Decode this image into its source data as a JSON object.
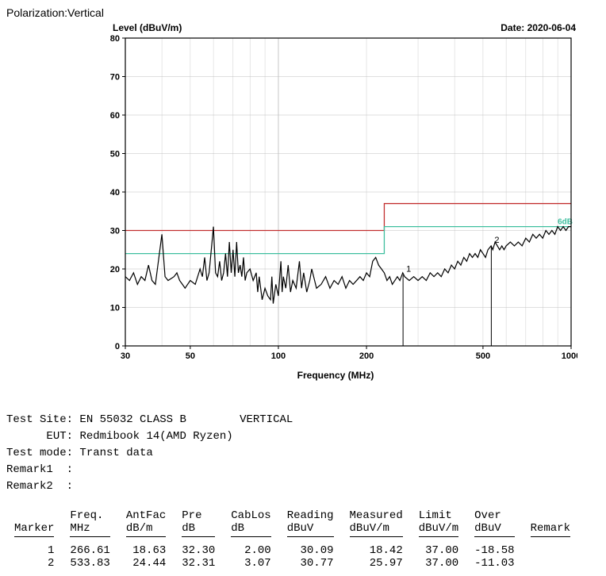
{
  "polarization_label": "Polarization:Vertical",
  "chart": {
    "type": "line",
    "y_axis_title": "Level (dBuV/m)",
    "date_label": "Date: 2020-06-04",
    "x_axis_title": "Frequency (MHz)",
    "x_scale": "log",
    "xlim": [
      30,
      1000
    ],
    "xticks": [
      30,
      50,
      100,
      200,
      500,
      1000
    ],
    "ylim": [
      0,
      80
    ],
    "yticks": [
      0,
      10,
      20,
      30,
      40,
      50,
      60,
      70,
      80
    ],
    "tick_fontsize": 11,
    "title_fontsize": 12,
    "background_color": "#ffffff",
    "grid_color": "#c0c0c0",
    "border_color": "#000000",
    "limit_red": {
      "color": "#c23030",
      "segments": [
        {
          "x1": 30,
          "x2": 230,
          "y": 30
        },
        {
          "x1": 230,
          "x2": 1000,
          "y": 37
        }
      ]
    },
    "limit_green": {
      "color": "#3fbf9f",
      "label": "6dB",
      "label_x": 900,
      "label_y": 31,
      "segments": [
        {
          "x1": 30,
          "x2": 230,
          "y": 24
        },
        {
          "x1": 230,
          "x2": 1000,
          "y": 31
        }
      ]
    },
    "markers": [
      {
        "n": 1,
        "x": 266.61,
        "y": 18.42,
        "line_to_zero": true
      },
      {
        "n": 2,
        "x": 533.83,
        "y": 25.97,
        "line_to_zero": true
      }
    ],
    "marker_color": "#000000",
    "trace_color": "#000000",
    "trace_width": 1.2,
    "trace": [
      [
        30,
        18
      ],
      [
        31,
        17
      ],
      [
        32,
        19
      ],
      [
        33,
        16
      ],
      [
        34,
        18
      ],
      [
        35,
        17
      ],
      [
        36,
        21
      ],
      [
        37,
        17
      ],
      [
        38,
        16
      ],
      [
        40,
        29
      ],
      [
        41,
        18
      ],
      [
        42,
        17
      ],
      [
        44,
        18
      ],
      [
        45,
        19
      ],
      [
        46,
        17
      ],
      [
        47,
        16
      ],
      [
        48,
        15
      ],
      [
        50,
        17
      ],
      [
        52,
        16
      ],
      [
        54,
        20
      ],
      [
        55,
        18
      ],
      [
        56,
        23
      ],
      [
        57,
        17
      ],
      [
        58,
        19
      ],
      [
        60,
        31
      ],
      [
        61,
        19
      ],
      [
        62,
        18
      ],
      [
        63,
        22
      ],
      [
        64,
        17
      ],
      [
        65,
        19
      ],
      [
        66,
        24
      ],
      [
        67,
        18
      ],
      [
        68,
        27
      ],
      [
        69,
        19
      ],
      [
        70,
        25
      ],
      [
        71,
        18
      ],
      [
        72,
        27
      ],
      [
        73,
        19
      ],
      [
        74,
        21
      ],
      [
        75,
        18
      ],
      [
        76,
        23
      ],
      [
        77,
        17
      ],
      [
        78,
        19
      ],
      [
        80,
        20
      ],
      [
        82,
        17
      ],
      [
        84,
        19
      ],
      [
        85,
        14
      ],
      [
        86,
        18
      ],
      [
        88,
        12
      ],
      [
        90,
        15
      ],
      [
        92,
        13
      ],
      [
        94,
        12
      ],
      [
        95,
        18
      ],
      [
        96,
        11
      ],
      [
        98,
        16
      ],
      [
        100,
        13
      ],
      [
        102,
        22
      ],
      [
        103,
        14
      ],
      [
        104,
        18
      ],
      [
        106,
        15
      ],
      [
        108,
        21
      ],
      [
        110,
        14
      ],
      [
        112,
        17
      ],
      [
        115,
        15
      ],
      [
        118,
        22
      ],
      [
        120,
        15
      ],
      [
        122,
        19
      ],
      [
        125,
        14
      ],
      [
        128,
        17
      ],
      [
        130,
        20
      ],
      [
        135,
        15
      ],
      [
        140,
        16
      ],
      [
        145,
        18
      ],
      [
        150,
        15
      ],
      [
        155,
        17
      ],
      [
        160,
        16
      ],
      [
        165,
        18
      ],
      [
        170,
        15
      ],
      [
        175,
        17
      ],
      [
        180,
        16
      ],
      [
        185,
        17
      ],
      [
        190,
        18
      ],
      [
        195,
        17
      ],
      [
        200,
        19
      ],
      [
        205,
        18
      ],
      [
        210,
        22
      ],
      [
        215,
        23
      ],
      [
        220,
        21
      ],
      [
        225,
        20
      ],
      [
        230,
        19
      ],
      [
        235,
        17
      ],
      [
        240,
        18
      ],
      [
        245,
        16
      ],
      [
        250,
        17
      ],
      [
        255,
        18
      ],
      [
        260,
        17
      ],
      [
        266,
        19
      ],
      [
        270,
        18
      ],
      [
        280,
        17
      ],
      [
        290,
        18
      ],
      [
        300,
        17
      ],
      [
        310,
        18
      ],
      [
        320,
        17
      ],
      [
        330,
        19
      ],
      [
        340,
        18
      ],
      [
        350,
        19
      ],
      [
        360,
        18
      ],
      [
        370,
        20
      ],
      [
        380,
        19
      ],
      [
        390,
        21
      ],
      [
        400,
        20
      ],
      [
        410,
        22
      ],
      [
        420,
        21
      ],
      [
        430,
        23
      ],
      [
        440,
        22
      ],
      [
        450,
        24
      ],
      [
        460,
        23
      ],
      [
        470,
        24
      ],
      [
        480,
        23
      ],
      [
        490,
        25
      ],
      [
        500,
        24
      ],
      [
        510,
        23
      ],
      [
        520,
        25
      ],
      [
        533,
        26
      ],
      [
        540,
        25
      ],
      [
        550,
        27
      ],
      [
        560,
        26
      ],
      [
        570,
        25
      ],
      [
        580,
        26
      ],
      [
        590,
        25
      ],
      [
        600,
        26
      ],
      [
        620,
        27
      ],
      [
        640,
        26
      ],
      [
        660,
        27
      ],
      [
        680,
        26
      ],
      [
        700,
        28
      ],
      [
        720,
        27
      ],
      [
        740,
        29
      ],
      [
        760,
        28
      ],
      [
        780,
        29
      ],
      [
        800,
        28
      ],
      [
        820,
        30
      ],
      [
        840,
        29
      ],
      [
        860,
        30
      ],
      [
        880,
        29
      ],
      [
        900,
        31
      ],
      [
        920,
        30
      ],
      [
        940,
        31
      ],
      [
        960,
        30
      ],
      [
        980,
        31
      ],
      [
        1000,
        31
      ]
    ]
  },
  "meta": {
    "test_site_label": "Test Site:",
    "test_site_value": "EN 55032 CLASS B",
    "orientation": "VERTICAL",
    "eut_label": "EUT:",
    "eut_value": "Redmibook 14(AMD Ryzen)",
    "test_mode_label": "Test mode:",
    "test_mode_value": "Transt data",
    "remark1_label": "Remark1  :",
    "remark2_label": "Remark2  :"
  },
  "table": {
    "headers": [
      {
        "l1": "",
        "l2": "Marker"
      },
      {
        "l1": "Freq.",
        "l2": "MHz"
      },
      {
        "l1": "AntFac",
        "l2": "dB/m"
      },
      {
        "l1": "Pre",
        "l2": "dB"
      },
      {
        "l1": "CabLos",
        "l2": "dB"
      },
      {
        "l1": "Reading",
        "l2": "dBuV"
      },
      {
        "l1": "Measured",
        "l2": "dBuV/m"
      },
      {
        "l1": "Limit",
        "l2": "dBuV/m"
      },
      {
        "l1": "Over",
        "l2": "dBuV"
      },
      {
        "l1": "",
        "l2": "Remark"
      }
    ],
    "rows": [
      [
        "1",
        "266.61",
        "18.63",
        "32.30",
        "2.00",
        "30.09",
        "18.42",
        "37.00",
        "-18.58",
        ""
      ],
      [
        "2",
        "533.83",
        "24.44",
        "32.31",
        "3.07",
        "30.77",
        "25.97",
        "37.00",
        "-11.03",
        ""
      ]
    ]
  }
}
